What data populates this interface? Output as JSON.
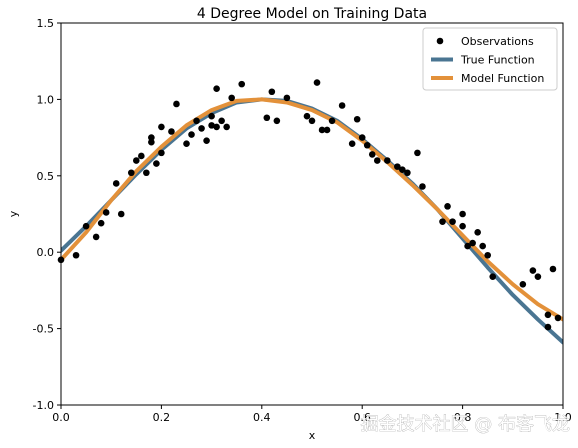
{
  "chart_data": {
    "type": "scatter",
    "title": "4 Degree Model on Training Data",
    "xlabel": "x",
    "ylabel": "y",
    "xlim": [
      0.0,
      1.0
    ],
    "ylim": [
      -1.0,
      1.5
    ],
    "xticks": [
      "0.0",
      "0.2",
      "0.4",
      "0.6",
      "0.8",
      "1.0"
    ],
    "yticks": [
      "-1.0",
      "-0.5",
      "0.0",
      "0.5",
      "1.0",
      "1.5"
    ],
    "grid": false,
    "legend_position": "top-right",
    "series": [
      {
        "name": "Observations",
        "kind": "scatter",
        "color": "#000000",
        "x": [
          0.0,
          0.03,
          0.05,
          0.07,
          0.08,
          0.09,
          0.11,
          0.12,
          0.14,
          0.15,
          0.16,
          0.17,
          0.18,
          0.18,
          0.19,
          0.2,
          0.2,
          0.22,
          0.23,
          0.25,
          0.26,
          0.27,
          0.28,
          0.29,
          0.3,
          0.3,
          0.31,
          0.31,
          0.32,
          0.33,
          0.34,
          0.36,
          0.41,
          0.42,
          0.43,
          0.45,
          0.49,
          0.5,
          0.51,
          0.52,
          0.53,
          0.54,
          0.56,
          0.58,
          0.59,
          0.6,
          0.61,
          0.62,
          0.63,
          0.65,
          0.67,
          0.68,
          0.69,
          0.71,
          0.72,
          0.76,
          0.77,
          0.78,
          0.8,
          0.8,
          0.81,
          0.82,
          0.83,
          0.84,
          0.85,
          0.86,
          0.92,
          0.94,
          0.95,
          0.97,
          0.97,
          0.98,
          0.99
        ],
        "y": [
          -0.05,
          -0.02,
          0.17,
          0.1,
          0.19,
          0.26,
          0.45,
          0.25,
          0.52,
          0.6,
          0.63,
          0.52,
          0.75,
          0.72,
          0.58,
          0.82,
          0.65,
          0.79,
          0.97,
          0.71,
          0.77,
          0.86,
          0.81,
          0.73,
          0.83,
          0.89,
          0.82,
          1.07,
          0.86,
          0.82,
          1.01,
          1.1,
          0.88,
          1.05,
          0.86,
          1.01,
          0.89,
          0.86,
          1.11,
          0.8,
          0.8,
          0.86,
          0.96,
          0.71,
          0.87,
          0.75,
          0.7,
          0.64,
          0.6,
          0.6,
          0.56,
          0.54,
          0.52,
          0.65,
          0.43,
          0.2,
          0.3,
          0.2,
          0.25,
          0.17,
          0.04,
          0.06,
          0.13,
          0.04,
          -0.02,
          -0.16,
          -0.21,
          -0.12,
          -0.16,
          -0.41,
          -0.49,
          -0.11,
          -0.43
        ]
      },
      {
        "name": "True Function",
        "kind": "line",
        "color": "#4a7592",
        "x": [
          0.0,
          0.05,
          0.1,
          0.15,
          0.2,
          0.25,
          0.3,
          0.35,
          0.4,
          0.45,
          0.5,
          0.55,
          0.6,
          0.65,
          0.7,
          0.75,
          0.8,
          0.85,
          0.9,
          0.95,
          1.0
        ],
        "y": [
          0.01,
          0.17,
          0.34,
          0.51,
          0.67,
          0.81,
          0.91,
          0.98,
          1.0,
          0.99,
          0.94,
          0.86,
          0.74,
          0.6,
          0.45,
          0.28,
          0.09,
          -0.1,
          -0.28,
          -0.44,
          -0.59
        ]
      },
      {
        "name": "Model Function",
        "kind": "line",
        "color": "#e3913a",
        "x": [
          0.0,
          0.05,
          0.1,
          0.15,
          0.2,
          0.25,
          0.3,
          0.35,
          0.4,
          0.45,
          0.5,
          0.55,
          0.6,
          0.65,
          0.7,
          0.75,
          0.8,
          0.85,
          0.9,
          0.95,
          1.0
        ],
        "y": [
          -0.05,
          0.13,
          0.34,
          0.53,
          0.69,
          0.83,
          0.93,
          0.99,
          1.0,
          0.98,
          0.93,
          0.85,
          0.73,
          0.59,
          0.44,
          0.28,
          0.11,
          -0.06,
          -0.21,
          -0.34,
          -0.44
        ]
      }
    ]
  },
  "watermark": {
    "text": "掘金技术社区 @ 布客飞龙"
  }
}
